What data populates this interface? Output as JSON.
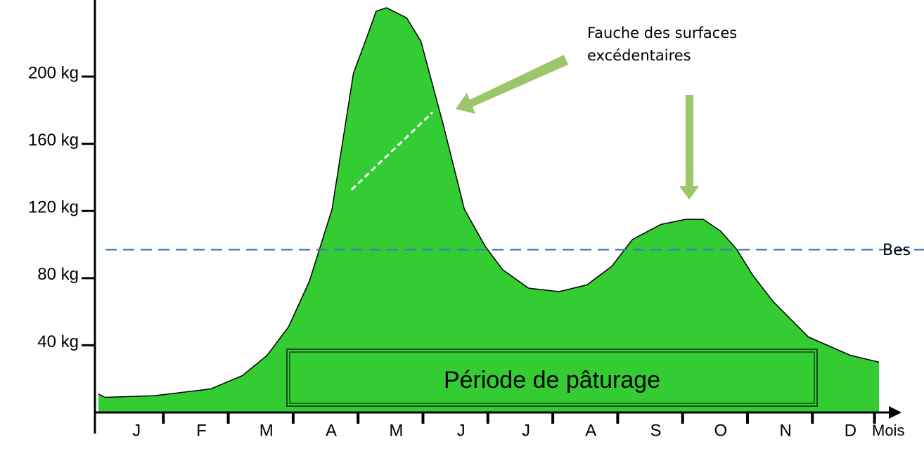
{
  "chart_data": {
    "type": "area",
    "x_label": "Mois",
    "categories": [
      "J",
      "F",
      "M",
      "A",
      "M",
      "J",
      "J",
      "A",
      "S",
      "O",
      "N",
      "D"
    ],
    "x": [
      0,
      0.1,
      0.87,
      1.73,
      2.22,
      2.6,
      2.93,
      3.25,
      3.6,
      3.93,
      4.17,
      4.28,
      4.44,
      4.75,
      4.97,
      5.31,
      5.64,
      5.96,
      6.23,
      6.63,
      7.1,
      7.53,
      7.91,
      8.23,
      8.67,
      9.05,
      9.32,
      9.59,
      9.84,
      10.08,
      10.4,
      10.94,
      11.59,
      12.03
    ],
    "series": [
      {
        "color": "#33cc33",
        "values": [
          11,
          9,
          10,
          14,
          22,
          34,
          51,
          78,
          121,
          202,
          227,
          239,
          241,
          235,
          221,
          172,
          121,
          99,
          85,
          74,
          72,
          76,
          87,
          103,
          112,
          115,
          115,
          108,
          97,
          82,
          66,
          45,
          34,
          30
        ]
      }
    ],
    "xlim": [
      0,
      12.03
    ],
    "ylim": [
      0,
      245
    ],
    "yticks": [
      {
        "value": 40,
        "label": "40 kg"
      },
      {
        "value": 80,
        "label": "80 kg"
      },
      {
        "value": 120,
        "label": "120 kg"
      },
      {
        "value": 160,
        "label": "160 kg"
      },
      {
        "value": 200,
        "label": "200 kg"
      }
    ],
    "threshold": {
      "value": 97,
      "label": "Bes",
      "color": "#4a7ebb"
    },
    "annotation": [
      "Fauche des surfaces",
      "excédentaires"
    ],
    "period_label": "Période de pâturage"
  }
}
